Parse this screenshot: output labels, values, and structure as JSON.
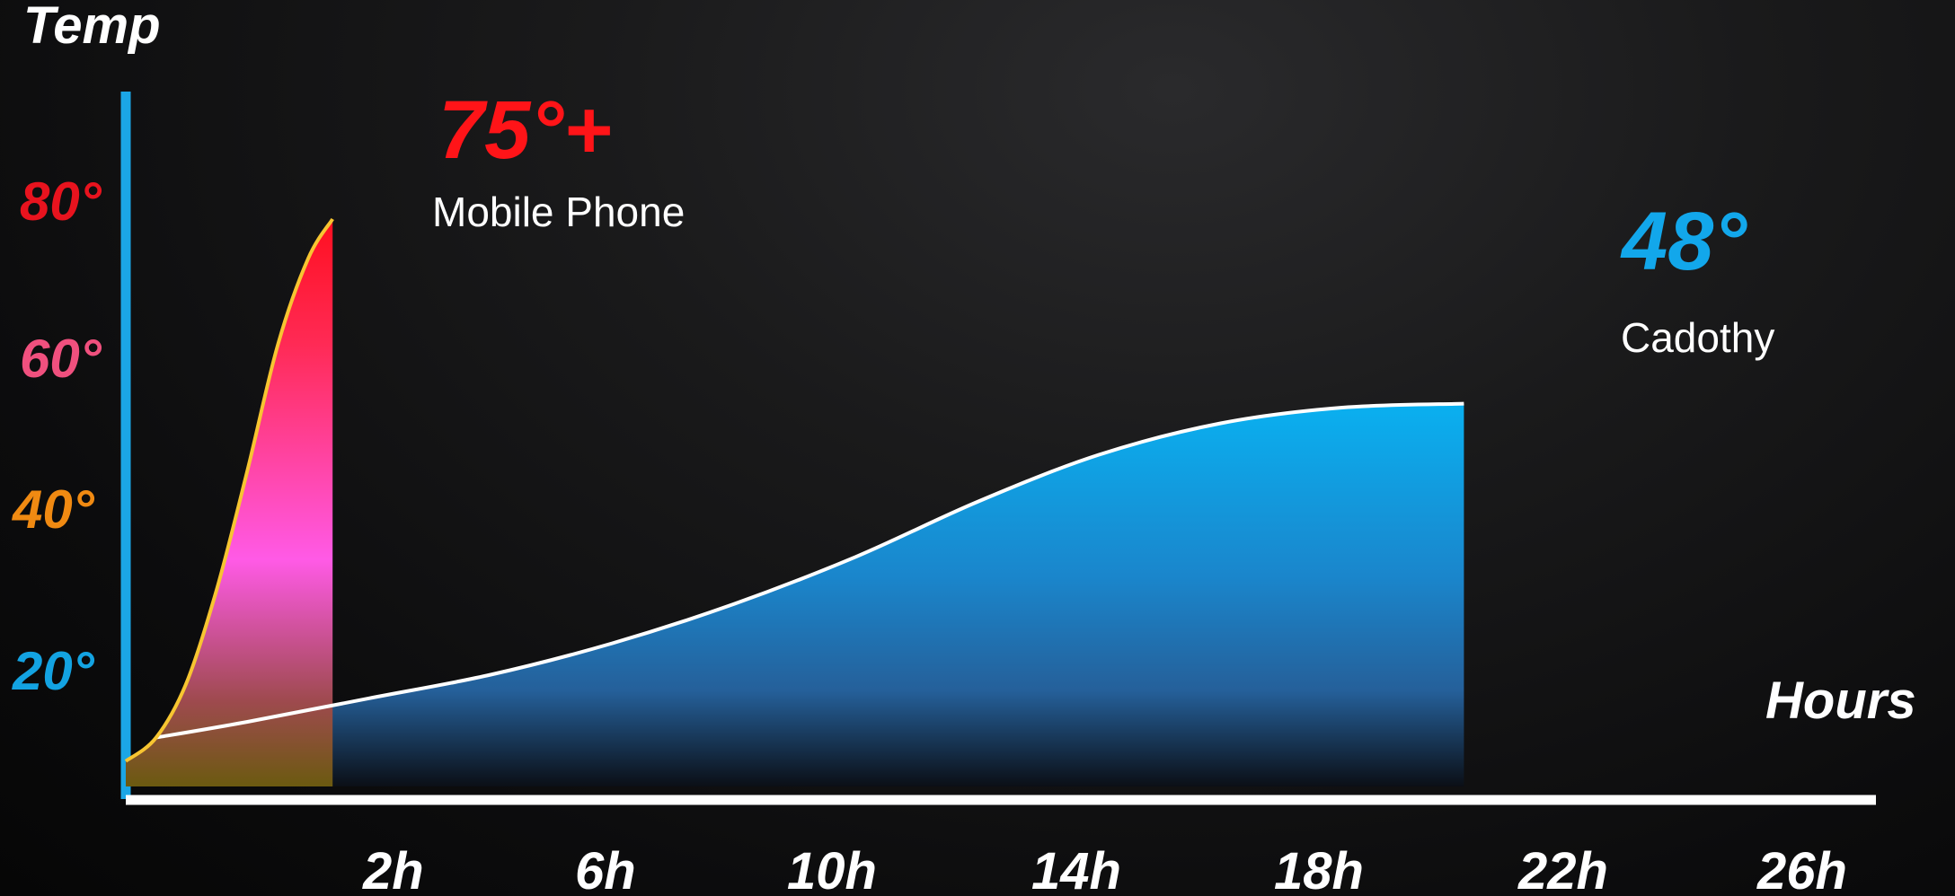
{
  "chart_data": {
    "type": "area",
    "ylabel": "Temp",
    "xlabel": "Hours",
    "y_ticks": [
      {
        "label": "80°",
        "value": 80,
        "color": "#e8131e"
      },
      {
        "label": "60°",
        "value": 60,
        "color": "#f0507e"
      },
      {
        "label": "40°",
        "value": 40,
        "color": "#f08a12"
      },
      {
        "label": "20°",
        "value": 20,
        "color": "#13a3e2"
      }
    ],
    "x_ticks": [
      "2h",
      "6h",
      "10h",
      "14h",
      "18h",
      "22h",
      "26h"
    ],
    "series": [
      {
        "name": "Mobile Phone",
        "peak_label": "75°+",
        "peak_color": "#ff1418",
        "points": [
          [
            0,
            3
          ],
          [
            0.5,
            6
          ],
          [
            1,
            13
          ],
          [
            1.5,
            25
          ],
          [
            2,
            40
          ],
          [
            2.5,
            56
          ],
          [
            3,
            67
          ],
          [
            3.4,
            72
          ]
        ]
      },
      {
        "name": "Cadothy",
        "peak_label": "48°",
        "peak_color": "#12a7eb",
        "points": [
          [
            0.5,
            6
          ],
          [
            2,
            8
          ],
          [
            4,
            11
          ],
          [
            6,
            14
          ],
          [
            8,
            18
          ],
          [
            10,
            23
          ],
          [
            12,
            29
          ],
          [
            14,
            36
          ],
          [
            16,
            42
          ],
          [
            18,
            46
          ],
          [
            20,
            48
          ],
          [
            22,
            48.5
          ]
        ]
      }
    ],
    "colors": {
      "y_axis": "#1ba6e6",
      "x_axis": "#ffffff",
      "phone_line": "#f7c531",
      "cadothy_line": "#ffffff"
    },
    "grid": false
  }
}
